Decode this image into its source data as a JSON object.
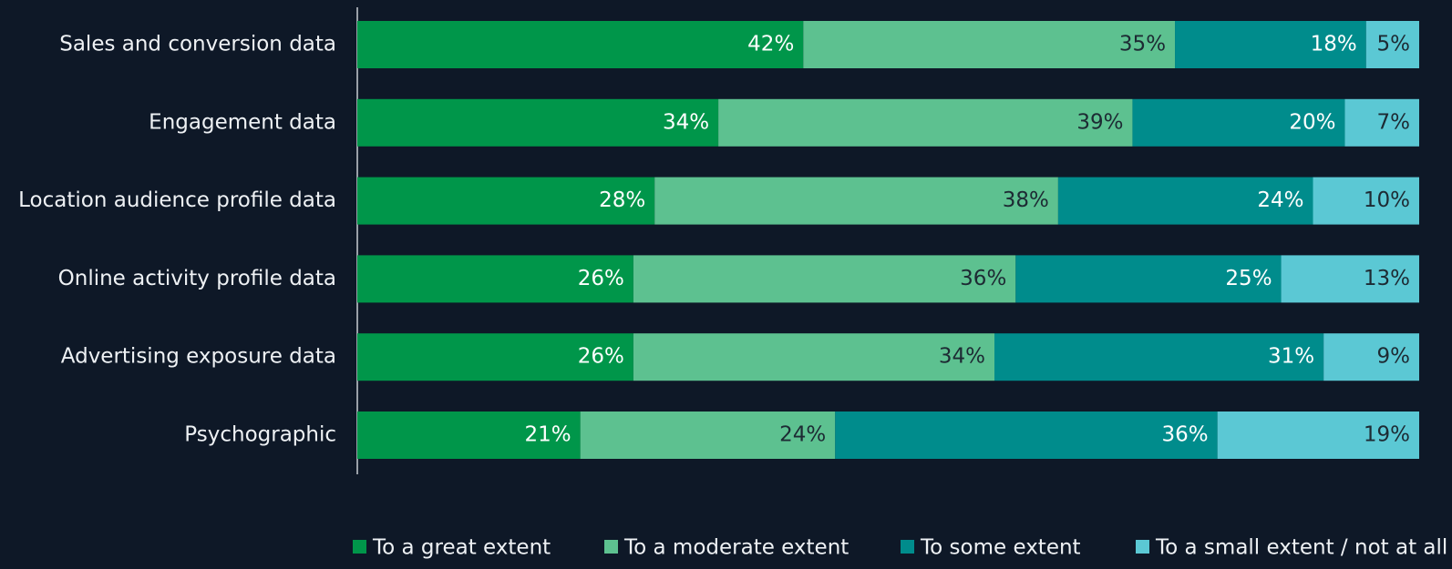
{
  "chart_data": {
    "type": "bar",
    "orientation": "horizontal",
    "stacked": true,
    "categories": [
      "Sales and conversion data",
      "Engagement data",
      "Location audience profile data",
      "Online activity profile data",
      "Advertising exposure data",
      "Psychographic"
    ],
    "xlim": [
      0,
      100
    ],
    "series": [
      {
        "name": "To a great extent",
        "color": "#00964a",
        "values": [
          42,
          34,
          28,
          26,
          26,
          21
        ],
        "value_labels": [
          "42%",
          "34%",
          "28%",
          "26%",
          "26%",
          "21%"
        ]
      },
      {
        "name": "To a moderate extent",
        "color": "#5dc190",
        "values": [
          35,
          39,
          38,
          36,
          34,
          24
        ],
        "value_labels": [
          "35%",
          "39%",
          "38%",
          "36%",
          "34%",
          "24%"
        ]
      },
      {
        "name": "To some extent",
        "color": "#008c8c",
        "values": [
          18,
          20,
          24,
          25,
          31,
          36
        ],
        "value_labels": [
          "18%",
          "20%",
          "24%",
          "25%",
          "31%",
          "36%"
        ]
      },
      {
        "name": "To a small extent / not at all",
        "color": "#5bc8d4",
        "values": [
          5,
          7,
          10,
          13,
          9,
          19
        ],
        "value_labels": [
          "5%",
          "7%",
          "10%",
          "13%",
          "9%",
          "19%"
        ]
      }
    ],
    "legend": "bottom"
  }
}
